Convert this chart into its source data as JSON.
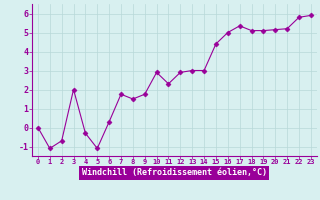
{
  "x": [
    0,
    1,
    2,
    3,
    4,
    5,
    6,
    7,
    8,
    9,
    10,
    11,
    12,
    13,
    14,
    15,
    16,
    17,
    18,
    19,
    20,
    21,
    22,
    23
  ],
  "y": [
    0.0,
    -1.1,
    -0.7,
    2.0,
    -0.3,
    -1.1,
    0.3,
    1.75,
    1.5,
    1.75,
    2.9,
    2.3,
    2.9,
    3.0,
    3.0,
    4.4,
    5.0,
    5.35,
    5.1,
    5.1,
    5.15,
    5.2,
    5.8,
    5.9
  ],
  "line_color": "#990099",
  "marker": "D",
  "marker_size": 2.5,
  "bg_color": "#d8f0f0",
  "grid_color": "#b8d8d8",
  "xlabel": "Windchill (Refroidissement éolien,°C)",
  "xlabel_color": "#ffffff",
  "xlabel_bg": "#990099",
  "ylim": [
    -1.5,
    6.5
  ],
  "xlim": [
    -0.5,
    23.5
  ],
  "yticks": [
    -1,
    0,
    1,
    2,
    3,
    4,
    5,
    6
  ],
  "xticks": [
    0,
    1,
    2,
    3,
    4,
    5,
    6,
    7,
    8,
    9,
    10,
    11,
    12,
    13,
    14,
    15,
    16,
    17,
    18,
    19,
    20,
    21,
    22,
    23
  ],
  "spine_color": "#990099",
  "tick_color": "#990099"
}
